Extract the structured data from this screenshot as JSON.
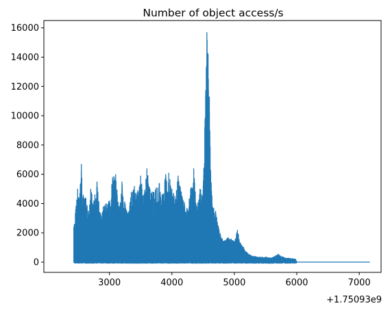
{
  "chart_data": {
    "type": "line",
    "title": "Number of object access/s",
    "xlabel": "",
    "ylabel": "",
    "x_offset_label": "+1.75093e9",
    "xlim": [
      1950,
      7350
    ],
    "ylim": [
      -700,
      16500
    ],
    "x_ticks": [
      3000,
      4000,
      5000,
      6000,
      7000
    ],
    "y_ticks": [
      0,
      2000,
      4000,
      6000,
      8000,
      10000,
      12000,
      14000,
      16000
    ],
    "grid": false,
    "legend": "none",
    "series_color": "#1f77b4",
    "series": [
      {
        "x": [
          2430,
          2460,
          2490,
          2520,
          2550,
          2580,
          2620,
          2660,
          2700,
          2750,
          2800,
          2850,
          2900,
          2950,
          3000,
          3050,
          3100,
          3150,
          3200,
          3250,
          3300,
          3350,
          3400,
          3450,
          3500,
          3550,
          3600,
          3650,
          3700,
          3750,
          3800,
          3850,
          3900,
          3950,
          4000,
          4050,
          4100,
          4150,
          4200,
          4250,
          4300,
          4350,
          4400,
          4450,
          4500,
          4540,
          4560,
          4580,
          4600,
          4620,
          4650,
          4700,
          4750,
          4800,
          4850,
          4900,
          4950,
          5000,
          5050,
          5100,
          5150,
          5200,
          5250,
          5300,
          5400,
          5500,
          5600,
          5700,
          5800,
          5900,
          5980,
          6000,
          6500,
          7000,
          7170
        ],
        "values": [
          2400,
          3600,
          5000,
          4200,
          6700,
          4600,
          4400,
          3500,
          5000,
          4200,
          5500,
          3400,
          3800,
          4000,
          4200,
          5800,
          6000,
          3700,
          5500,
          4000,
          3300,
          4800,
          5200,
          4900,
          5900,
          4600,
          6400,
          5000,
          4800,
          5100,
          5400,
          4600,
          6000,
          6100,
          5000,
          4500,
          5900,
          4800,
          4100,
          3600,
          5000,
          6400,
          3800,
          5000,
          4900,
          11400,
          15700,
          14200,
          11300,
          6300,
          3800,
          3500,
          2300,
          1600,
          1500,
          1700,
          1600,
          1400,
          2200,
          1300,
          1000,
          700,
          500,
          400,
          350,
          350,
          300,
          550,
          300,
          250,
          200,
          0,
          0,
          0,
          0
        ]
      }
    ]
  }
}
